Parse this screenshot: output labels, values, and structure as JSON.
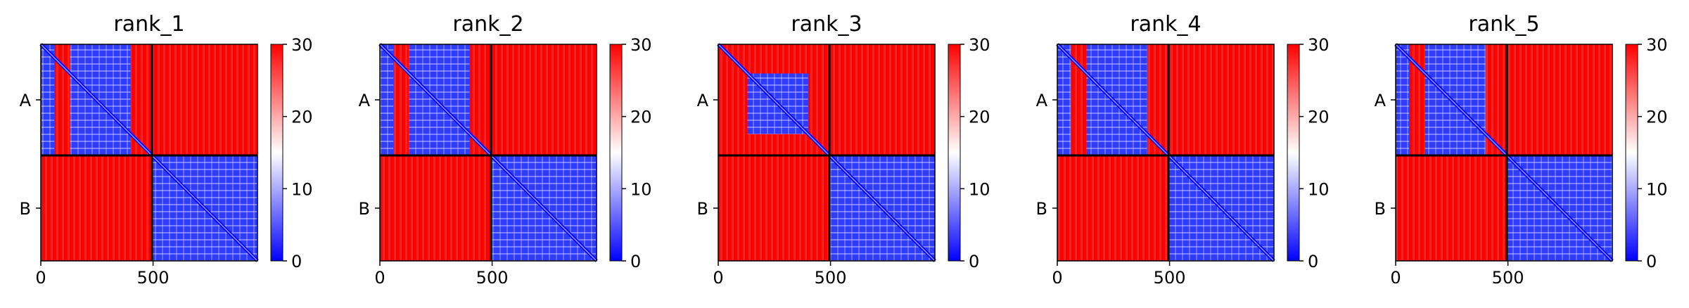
{
  "chart_data": [
    {
      "type": "heatmap",
      "title": "rank_1",
      "chains": [
        "A",
        "B"
      ],
      "chain_boundary": 495,
      "sequence_length": 965,
      "xticks": [
        0,
        500
      ],
      "xlim": [
        0,
        965
      ],
      "colorbar": {
        "min": 0,
        "max": 30,
        "ticks": [
          0,
          10,
          20,
          30
        ],
        "cmap": [
          "#0000ff",
          "#ffffff",
          "#ff0000"
        ]
      },
      "low_error_blocks": [
        {
          "x": [
            0,
            60
          ],
          "y": [
            0,
            495
          ]
        },
        {
          "x": [
            130,
            400
          ],
          "y": [
            0,
            495
          ]
        },
        {
          "x": [
            495,
            965
          ],
          "y": [
            495,
            965
          ]
        }
      ],
      "grid": false
    },
    {
      "type": "heatmap",
      "title": "rank_2",
      "chains": [
        "A",
        "B"
      ],
      "chain_boundary": 495,
      "sequence_length": 965,
      "xticks": [
        0,
        500
      ],
      "xlim": [
        0,
        965
      ],
      "colorbar": {
        "min": 0,
        "max": 30,
        "ticks": [
          0,
          10,
          20,
          30
        ],
        "cmap": [
          "#0000ff",
          "#ffffff",
          "#ff0000"
        ]
      },
      "low_error_blocks": [
        {
          "x": [
            0,
            60
          ],
          "y": [
            0,
            495
          ]
        },
        {
          "x": [
            130,
            400
          ],
          "y": [
            0,
            495
          ]
        },
        {
          "x": [
            495,
            965
          ],
          "y": [
            495,
            965
          ]
        }
      ],
      "grid": false
    },
    {
      "type": "heatmap",
      "title": "rank_3",
      "chains": [
        "A",
        "B"
      ],
      "chain_boundary": 495,
      "sequence_length": 965,
      "xticks": [
        0,
        500
      ],
      "xlim": [
        0,
        965
      ],
      "colorbar": {
        "min": 0,
        "max": 30,
        "ticks": [
          0,
          10,
          20,
          30
        ],
        "cmap": [
          "#0000ff",
          "#ffffff",
          "#ff0000"
        ]
      },
      "low_error_blocks": [
        {
          "x": [
            130,
            400
          ],
          "y": [
            130,
            400
          ]
        },
        {
          "x": [
            495,
            965
          ],
          "y": [
            495,
            965
          ]
        }
      ],
      "grid": false
    },
    {
      "type": "heatmap",
      "title": "rank_4",
      "chains": [
        "A",
        "B"
      ],
      "chain_boundary": 495,
      "sequence_length": 965,
      "xticks": [
        0,
        500
      ],
      "xlim": [
        0,
        965
      ],
      "colorbar": {
        "min": 0,
        "max": 30,
        "ticks": [
          0,
          10,
          20,
          30
        ],
        "cmap": [
          "#0000ff",
          "#ffffff",
          "#ff0000"
        ]
      },
      "low_error_blocks": [
        {
          "x": [
            0,
            60
          ],
          "y": [
            0,
            495
          ]
        },
        {
          "x": [
            130,
            400
          ],
          "y": [
            0,
            495
          ]
        },
        {
          "x": [
            495,
            965
          ],
          "y": [
            495,
            965
          ]
        }
      ],
      "grid": false
    },
    {
      "type": "heatmap",
      "title": "rank_5",
      "chains": [
        "A",
        "B"
      ],
      "chain_boundary": 495,
      "sequence_length": 965,
      "xticks": [
        0,
        500
      ],
      "xlim": [
        0,
        965
      ],
      "colorbar": {
        "min": 0,
        "max": 30,
        "ticks": [
          0,
          10,
          20,
          30
        ],
        "cmap": [
          "#0000ff",
          "#ffffff",
          "#ff0000"
        ]
      },
      "low_error_blocks": [
        {
          "x": [
            0,
            60
          ],
          "y": [
            0,
            495
          ]
        },
        {
          "x": [
            130,
            400
          ],
          "y": [
            0,
            495
          ]
        },
        {
          "x": [
            495,
            965
          ],
          "y": [
            495,
            965
          ]
        }
      ],
      "grid": false
    }
  ]
}
